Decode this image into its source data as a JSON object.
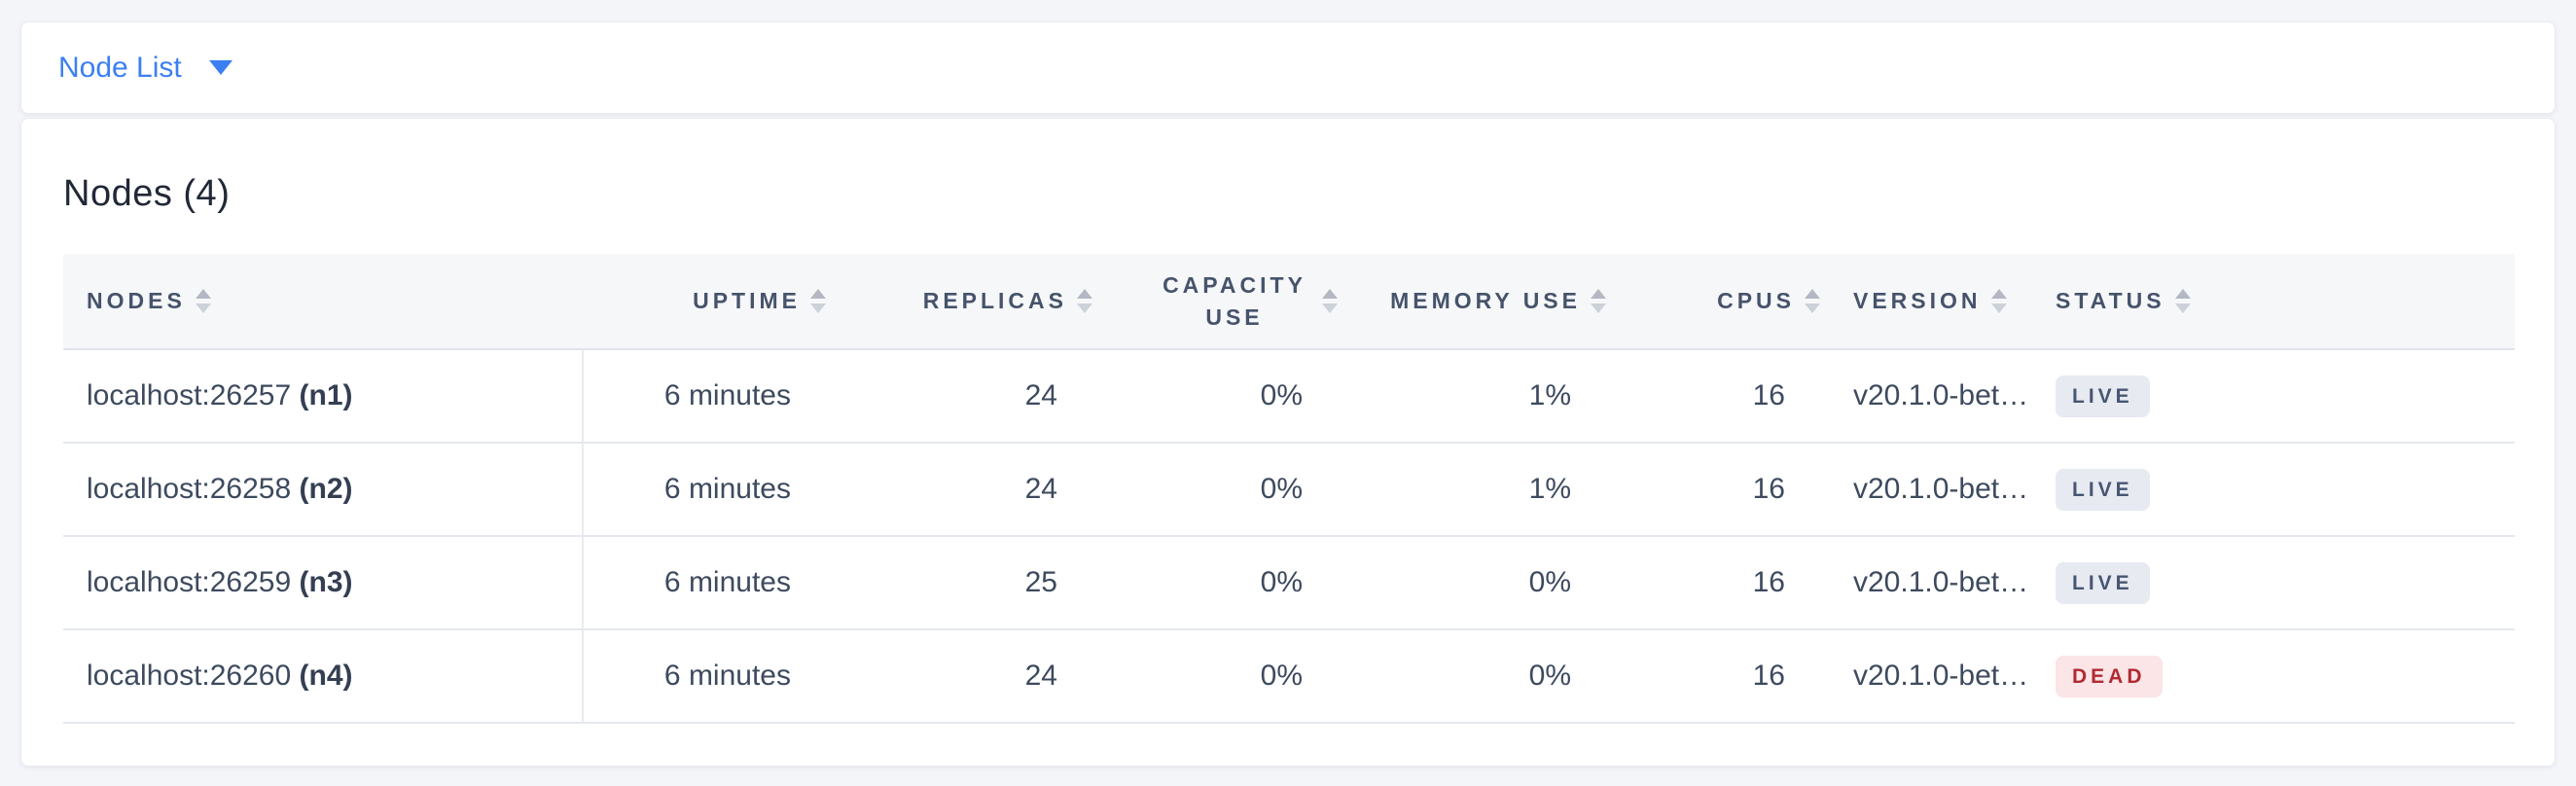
{
  "page": {
    "background": "#f4f5f9",
    "accent_color": "#3b7ff2"
  },
  "toolbar": {
    "view_label": "Node List",
    "dropdown_icon": "caret-down-icon"
  },
  "summary": {
    "title": "Nodes (4)"
  },
  "table": {
    "sort_icon": "sort-arrows-icon",
    "columns": [
      {
        "key": "nodes",
        "label": "NODES",
        "align": "left"
      },
      {
        "key": "uptime",
        "label": "UPTIME",
        "align": "right"
      },
      {
        "key": "replicas",
        "label": "REPLICAS",
        "align": "right"
      },
      {
        "key": "capacity_use",
        "label": "CAPACITY USE",
        "align": "right"
      },
      {
        "key": "memory_use",
        "label": "MEMORY USE",
        "align": "right"
      },
      {
        "key": "cpus",
        "label": "CPUS",
        "align": "right"
      },
      {
        "key": "version",
        "label": "VERSION",
        "align": "left"
      },
      {
        "key": "status",
        "label": "STATUS",
        "align": "left"
      }
    ],
    "rows": [
      {
        "address": "localhost:26257",
        "node_id": "(n1)",
        "uptime": "6 minutes",
        "replicas": "24",
        "capacity_use": "0%",
        "memory_use": "1%",
        "cpus": "16",
        "version": "v20.1.0-bet…",
        "status": "LIVE"
      },
      {
        "address": "localhost:26258",
        "node_id": "(n2)",
        "uptime": "6 minutes",
        "replicas": "24",
        "capacity_use": "0%",
        "memory_use": "1%",
        "cpus": "16",
        "version": "v20.1.0-bet…",
        "status": "LIVE"
      },
      {
        "address": "localhost:26259",
        "node_id": "(n3)",
        "uptime": "6 minutes",
        "replicas": "25",
        "capacity_use": "0%",
        "memory_use": "0%",
        "cpus": "16",
        "version": "v20.1.0-bet…",
        "status": "LIVE"
      },
      {
        "address": "localhost:26260",
        "node_id": "(n4)",
        "uptime": "6 minutes",
        "replicas": "24",
        "capacity_use": "0%",
        "memory_use": "0%",
        "cpus": "16",
        "version": "v20.1.0-bet…",
        "status": "DEAD"
      }
    ],
    "status_colors": {
      "LIVE": {
        "bg": "#e7eaf1",
        "text": "#475672"
      },
      "DEAD": {
        "bg": "#fbe5e7",
        "text": "#b02a33"
      }
    }
  }
}
